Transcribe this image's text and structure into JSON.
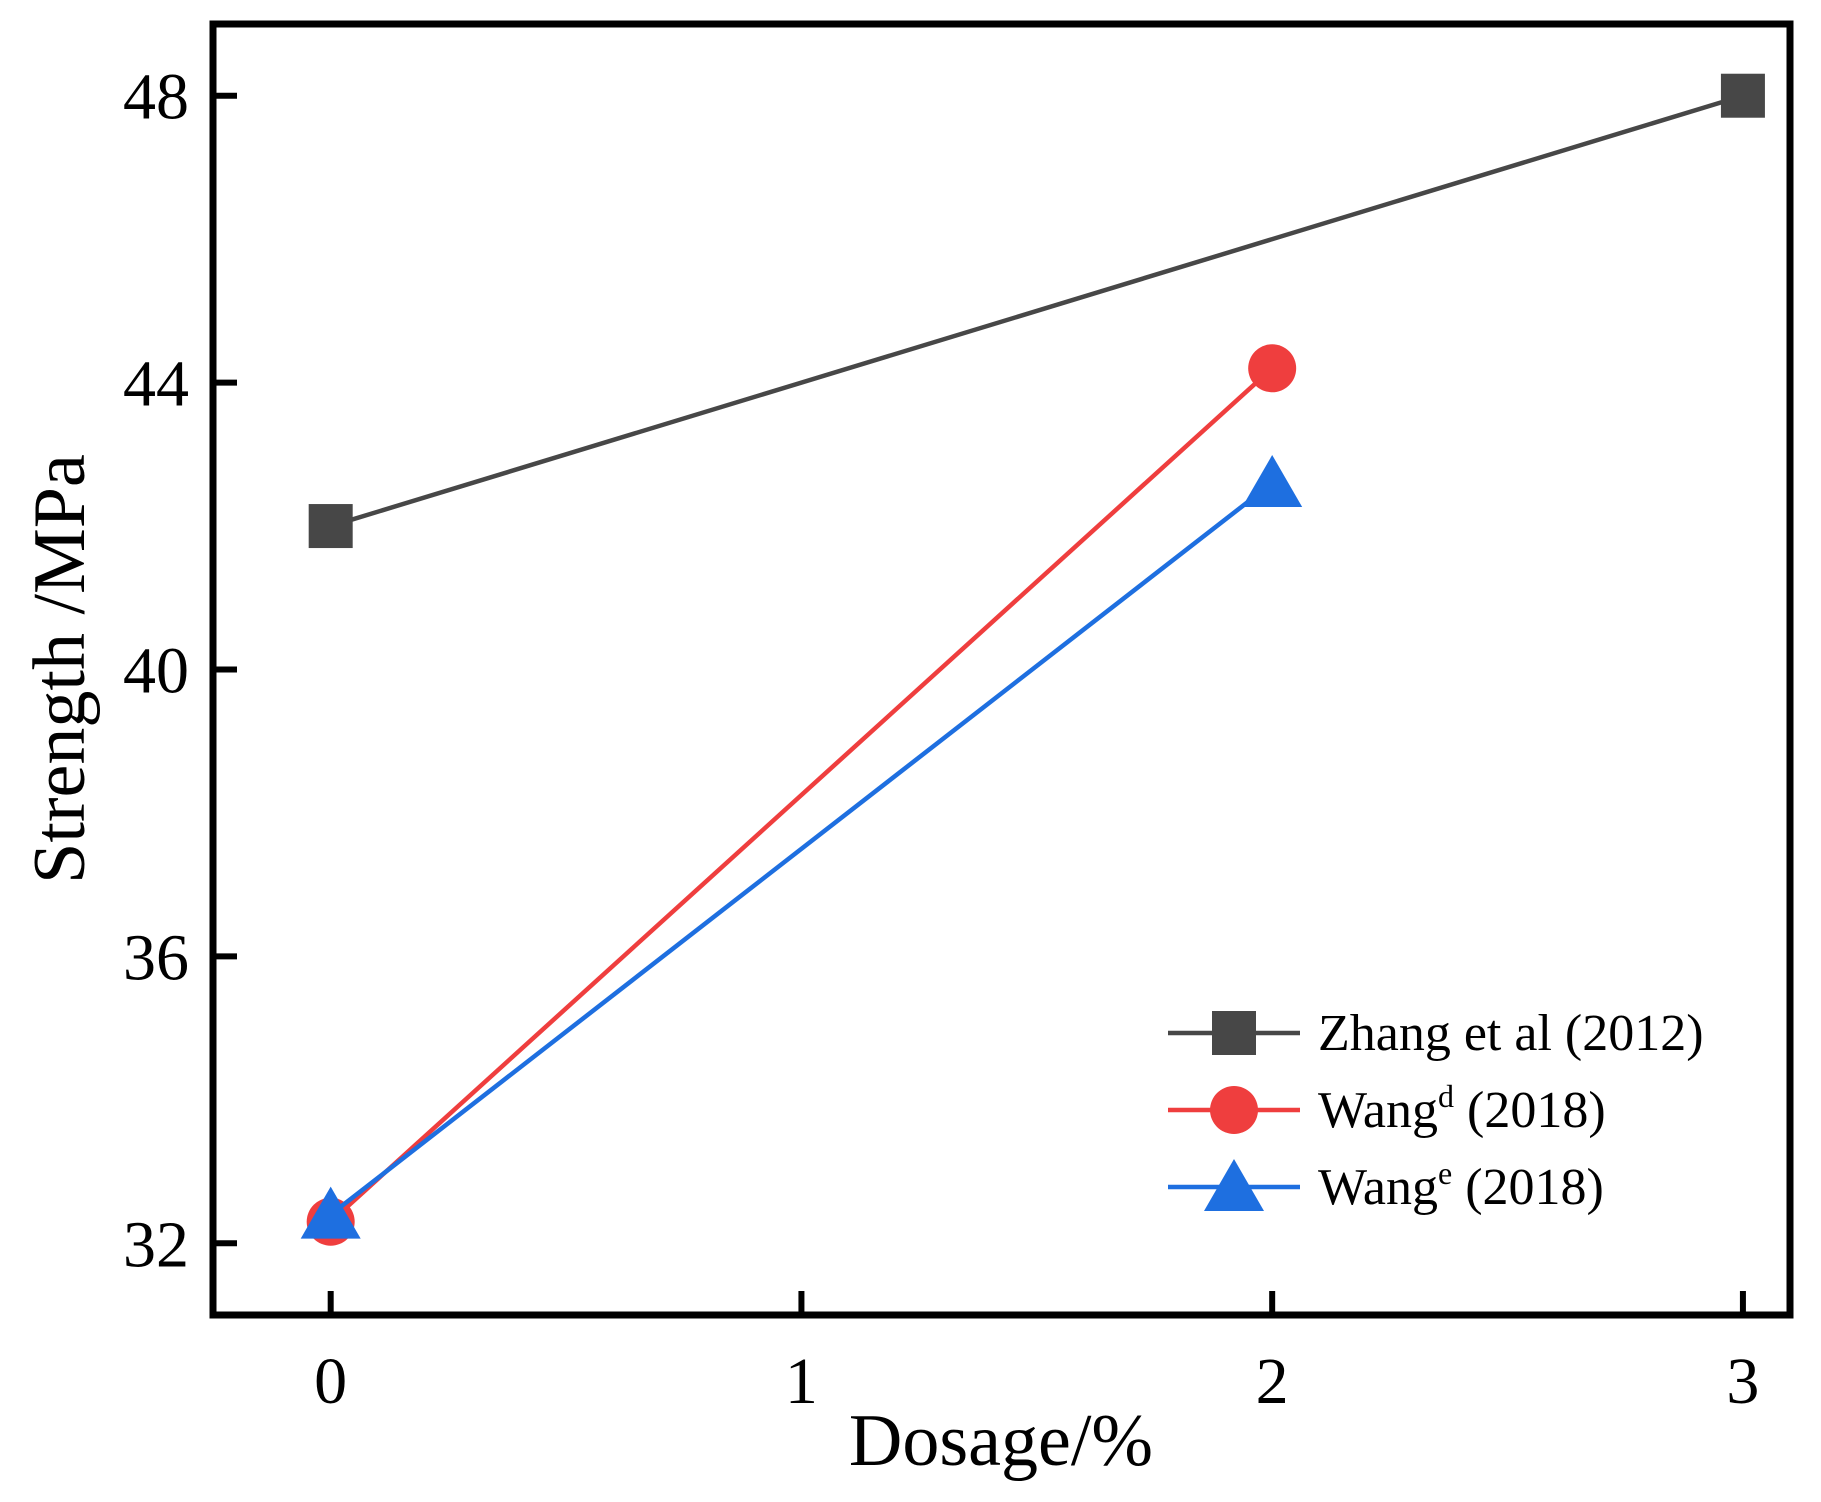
{
  "chart_data": {
    "type": "line",
    "title": "",
    "xlabel": "Dosage/%",
    "ylabel": "Strength /MPa",
    "xlim": [
      -0.25,
      3.1
    ],
    "ylim": [
      31.0,
      49.0
    ],
    "xticks": [
      0,
      1,
      2,
      3
    ],
    "xtick_labels": [
      "0",
      "1",
      "2",
      "3"
    ],
    "yticks": [
      32,
      36,
      40,
      44,
      48
    ],
    "ytick_labels": [
      "32",
      "36",
      "40",
      "44",
      "48"
    ],
    "grid": false,
    "legend_position": "bottom-right",
    "series": [
      {
        "name": "Zhang et al (2012)",
        "label_main": "Zhang et al (2012)",
        "label_sup": "",
        "label_tail": "",
        "color": "#474747",
        "marker": "square",
        "x": [
          0,
          3
        ],
        "y": [
          42.0,
          48.0
        ]
      },
      {
        "name": "Wang d (2018)",
        "label_main": "Wang",
        "label_sup": "d",
        "label_tail": " (2018)",
        "color": "#ef3e3e",
        "marker": "circle",
        "x": [
          0,
          2
        ],
        "y": [
          32.3,
          44.2
        ]
      },
      {
        "name": "Wang e (2018)",
        "label_main": "Wang",
        "label_sup": "e",
        "label_tail": " (2018)",
        "color": "#1e6fe0",
        "marker": "triangle",
        "x": [
          0,
          2
        ],
        "y": [
          32.4,
          42.6
        ]
      }
    ]
  }
}
